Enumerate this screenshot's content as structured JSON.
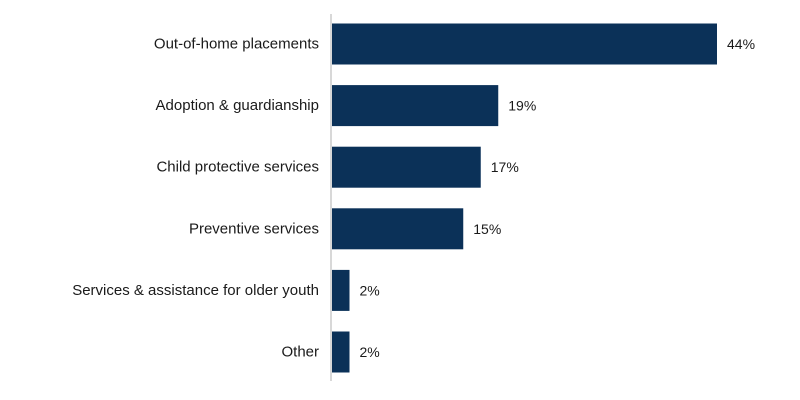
{
  "colors": {
    "bar": "#0b3158",
    "axis": "#b0b0b0",
    "text": "#1a1a1a"
  },
  "chart_data": {
    "type": "bar",
    "orientation": "horizontal",
    "categories": [
      "Out-of-home placements",
      "Adoption & guardianship",
      "Child protective services",
      "Preventive services",
      "Services & assistance for older youth",
      "Other"
    ],
    "values": [
      44,
      19,
      17,
      15,
      2,
      2
    ],
    "value_labels": [
      "44%",
      "19%",
      "17%",
      "15%",
      "2%",
      "2%"
    ],
    "unit": "%",
    "xlim": [
      0,
      44
    ],
    "grid": false,
    "legend": "none"
  }
}
